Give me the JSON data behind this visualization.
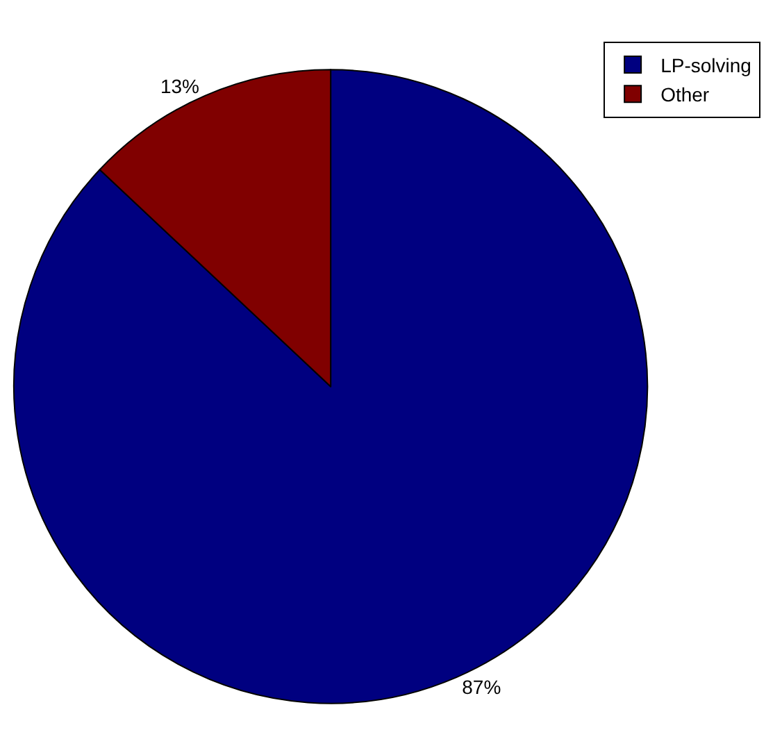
{
  "chart_data": {
    "type": "pie",
    "categories": [
      "LP-solving",
      "Other"
    ],
    "values": [
      87,
      13
    ],
    "colors": [
      "#000080",
      "#800000"
    ],
    "value_labels": [
      "87%",
      "13%"
    ],
    "legend": "top right"
  }
}
